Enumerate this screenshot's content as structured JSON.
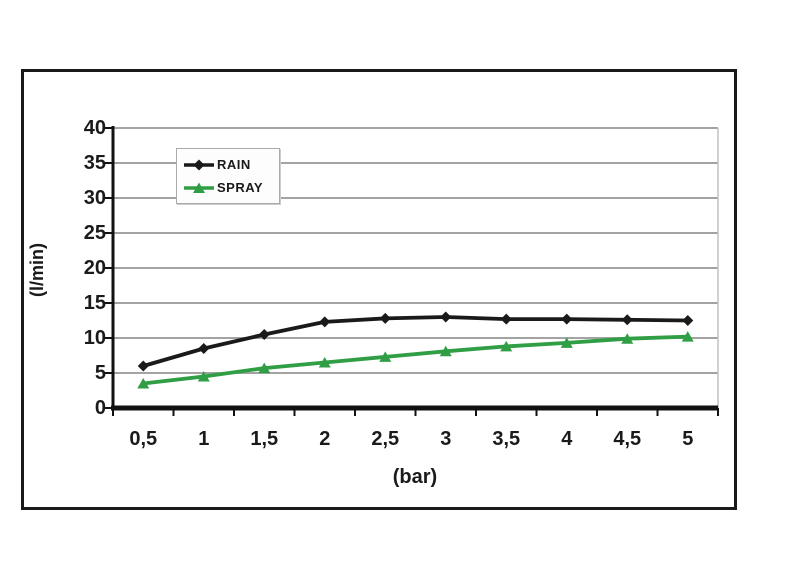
{
  "chart_data": {
    "type": "line",
    "title": "",
    "xlabel": "(bar)",
    "ylabel": "(l/min)",
    "x_tick_labels": [
      "0,5",
      "1",
      "1,5",
      "2",
      "2,5",
      "3",
      "3,5",
      "4",
      "4,5",
      "5"
    ],
    "x_values": [
      0.5,
      1,
      1.5,
      2,
      2.5,
      3,
      3.5,
      4,
      4.5,
      5
    ],
    "y_ticks": [
      0,
      5,
      10,
      15,
      20,
      25,
      30,
      35,
      40
    ],
    "ylim": [
      0,
      40
    ],
    "grid": "horizontal-on",
    "legend_position": "top-left-inside",
    "series": [
      {
        "name": "RAIN",
        "color": "#1a1a1a",
        "marker": "diamond",
        "values": [
          6,
          8.5,
          10.5,
          12.3,
          12.8,
          13,
          12.7,
          12.7,
          12.6,
          12.5
        ]
      },
      {
        "name": "SPRAY",
        "color": "#2f9e45",
        "marker": "triangle",
        "values": [
          3.5,
          4.5,
          5.7,
          6.5,
          7.3,
          8.1,
          8.8,
          9.3,
          9.9,
          10.2
        ]
      }
    ]
  },
  "colors": {
    "figure_border": "#1a1a1a",
    "axis": "#111111",
    "gridline": "#a3a3a3",
    "plot_right_edge": "#c0c0c0",
    "text": "#1a1a1a",
    "legend_border": "#aaaaaa",
    "background": "#ffffff"
  }
}
